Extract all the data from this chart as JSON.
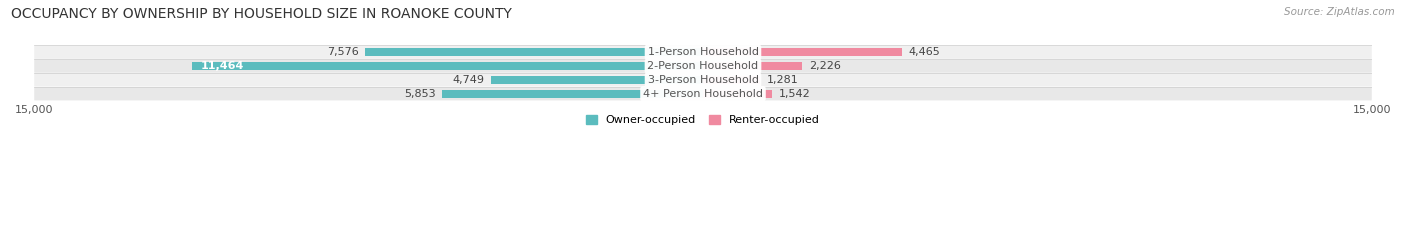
{
  "title": "OCCUPANCY BY OWNERSHIP BY HOUSEHOLD SIZE IN ROANOKE COUNTY",
  "source": "Source: ZipAtlas.com",
  "categories": [
    "1-Person Household",
    "2-Person Household",
    "3-Person Household",
    "4+ Person Household"
  ],
  "owner_values": [
    7576,
    11464,
    4749,
    5853
  ],
  "renter_values": [
    4465,
    2226,
    1281,
    1542
  ],
  "owner_color": "#5bbcbe",
  "renter_color": "#f08aa0",
  "row_bg_colors": [
    "#f0f0f0",
    "#e8e8e8"
  ],
  "axis_limit": 15000,
  "title_fontsize": 10,
  "source_fontsize": 7.5,
  "label_fontsize": 8,
  "tick_fontsize": 8,
  "legend_fontsize": 8,
  "bar_height": 0.6,
  "background_color": "#ffffff",
  "value_label_color": "#444444",
  "value_label_white": "#ffffff"
}
